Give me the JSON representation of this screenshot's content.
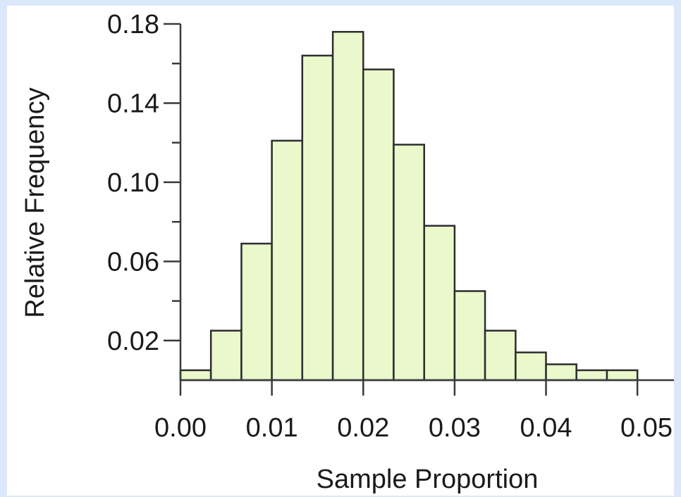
{
  "chart_data": {
    "type": "bar",
    "xlabel": "Sample Proportion",
    "ylabel": "Relative Frequency",
    "bin_width": 0.00333,
    "bins": [
      {
        "start": 0.0,
        "end": 0.00333,
        "value": 0.005
      },
      {
        "start": 0.00333,
        "end": 0.00667,
        "value": 0.025
      },
      {
        "start": 0.00667,
        "end": 0.01,
        "value": 0.069
      },
      {
        "start": 0.01,
        "end": 0.01333,
        "value": 0.121
      },
      {
        "start": 0.01333,
        "end": 0.01667,
        "value": 0.164
      },
      {
        "start": 0.01667,
        "end": 0.02,
        "value": 0.176
      },
      {
        "start": 0.02,
        "end": 0.02333,
        "value": 0.157
      },
      {
        "start": 0.02333,
        "end": 0.02667,
        "value": 0.119
      },
      {
        "start": 0.02667,
        "end": 0.03,
        "value": 0.078
      },
      {
        "start": 0.03,
        "end": 0.03333,
        "value": 0.045
      },
      {
        "start": 0.03333,
        "end": 0.03667,
        "value": 0.025
      },
      {
        "start": 0.03667,
        "end": 0.04,
        "value": 0.014
      },
      {
        "start": 0.04,
        "end": 0.04333,
        "value": 0.008
      },
      {
        "start": 0.04333,
        "end": 0.04667,
        "value": 0.005
      },
      {
        "start": 0.04667,
        "end": 0.05,
        "value": 0.005
      }
    ],
    "xlim": [
      0.0,
      0.054
    ],
    "ylim": [
      0.0,
      0.18
    ],
    "x_ticks": [
      "0.00",
      "0.01",
      "0.02",
      "0.03",
      "0.04",
      "0.05"
    ],
    "x_tick_values": [
      0.0,
      0.01,
      0.02,
      0.03,
      0.04,
      0.05
    ],
    "y_ticks": [
      "0.02",
      "0.06",
      "0.10",
      "0.14",
      "0.18"
    ],
    "y_tick_values": [
      0.02,
      0.06,
      0.1,
      0.14,
      0.18
    ],
    "y_minor_tick_values": [
      0.04,
      0.08,
      0.12,
      0.16
    ],
    "grid": false,
    "colors": {
      "bar_fill": "#eaf8cc",
      "bar_stroke": "#2d2d2d",
      "frame_background": "#dbe8fb"
    }
  }
}
